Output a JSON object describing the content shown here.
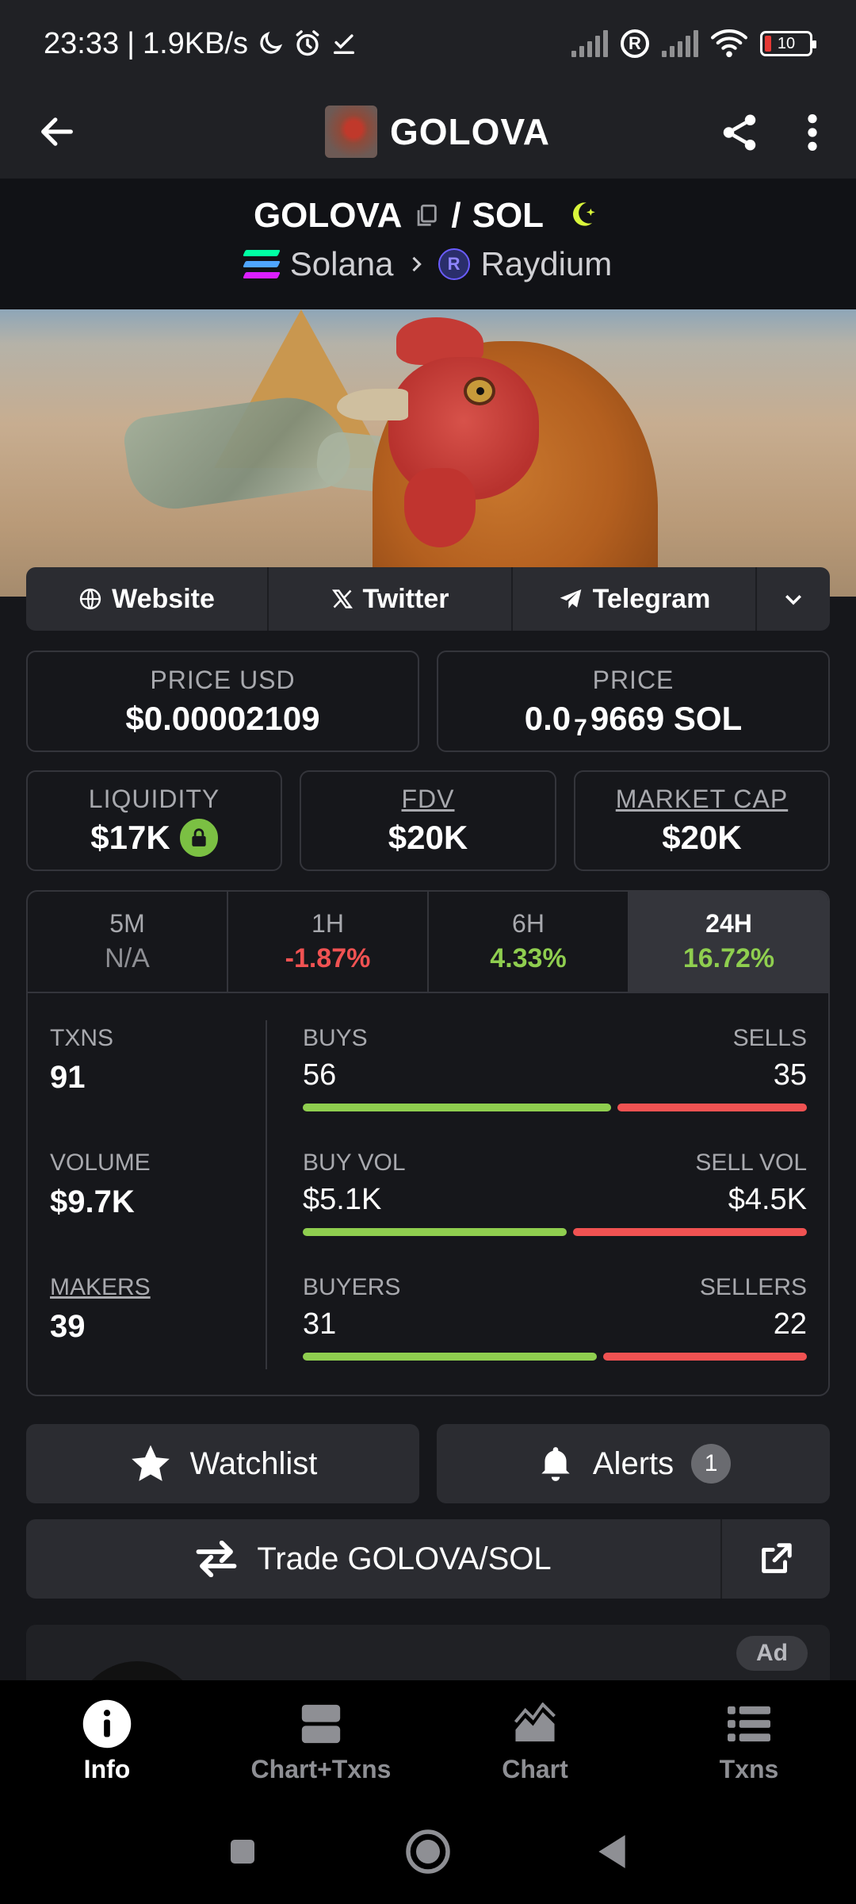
{
  "status_bar": {
    "time": "23:33",
    "speed": "1.9KB/s",
    "battery": "10"
  },
  "app_bar": {
    "title": "GOLOVA"
  },
  "pair": {
    "base": "GOLOVA",
    "separator": "/",
    "quote": "SOL",
    "chain": "Solana",
    "dex": "Raydium",
    "chain_colors": [
      "#00ffa3",
      "#4fa6ff",
      "#dc1fff"
    ]
  },
  "socials": {
    "website": "Website",
    "twitter": "Twitter",
    "telegram": "Telegram"
  },
  "prices": {
    "price_usd_label": "PRICE USD",
    "price_usd": "$0.00002109",
    "price_label": "PRICE",
    "price_prefix": "0.0",
    "price_zeros": "7",
    "price_suffix": "9669 SOL"
  },
  "metrics": {
    "liquidity_label": "LIQUIDITY",
    "liquidity": "$17K",
    "fdv_label": "FDV",
    "fdv": "$20K",
    "mcap_label": "MARKET CAP",
    "mcap": "$20K"
  },
  "periods": [
    {
      "label": "5M",
      "value": "N/A",
      "color": "#8e8f94"
    },
    {
      "label": "1H",
      "value": "-1.87%",
      "color": "#f05252"
    },
    {
      "label": "6H",
      "value": "4.33%",
      "color": "#8fce4f"
    },
    {
      "label": "24H",
      "value": "16.72%",
      "color": "#8fce4f"
    }
  ],
  "stats": {
    "txns_label": "TXNS",
    "txns": "91",
    "volume_label": "VOLUME",
    "volume": "$9.7K",
    "makers_label": "MAKERS",
    "makers": "39",
    "buys_label": "BUYS",
    "buys": "56",
    "sells_label": "SELLS",
    "sells": "35",
    "buy_share": 0.62,
    "buy_vol_label": "BUY VOL",
    "buy_vol": "$5.1K",
    "sell_vol_label": "SELL VOL",
    "sell_vol": "$4.5K",
    "buy_vol_share": 0.53,
    "buyers_label": "BUYERS",
    "buyers": "31",
    "sellers_label": "SELLERS",
    "sellers": "22",
    "buyer_share": 0.59,
    "buy_color": "#8fce4f",
    "sell_color": "#f05252"
  },
  "actions": {
    "watchlist": "Watchlist",
    "alerts": "Alerts",
    "alerts_count": "1",
    "trade": "Trade GOLOVA/SOL"
  },
  "ad": {
    "badge": "Ad"
  },
  "bottom_nav": [
    {
      "label": "Info",
      "icon": "info-icon"
    },
    {
      "label": "Chart+Txns",
      "icon": "split-view-icon"
    },
    {
      "label": "Chart",
      "icon": "chart-icon"
    },
    {
      "label": "Txns",
      "icon": "list-icon"
    }
  ]
}
